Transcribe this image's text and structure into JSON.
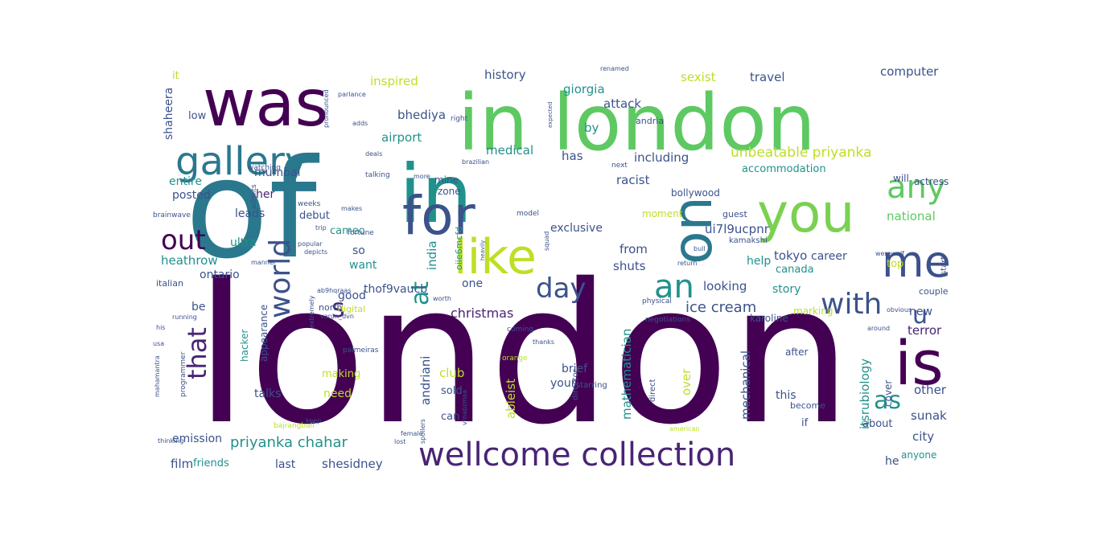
{
  "wordcloud": {
    "colormap": [
      "#440154",
      "#482878",
      "#3e4989",
      "#31688e",
      "#26828e",
      "#1f9e89",
      "#35b779",
      "#6ece58",
      "#b5de2b",
      "#fde725"
    ],
    "words": [
      {
        "text": "london",
        "color": "#440154"
      },
      {
        "text": "of",
        "color": "#2a788e"
      },
      {
        "text": "in london",
        "color": "#5ec962"
      },
      {
        "text": "was",
        "color": "#440154"
      },
      {
        "text": "in",
        "color": "#21918c"
      },
      {
        "text": "for",
        "color": "#3b528b"
      },
      {
        "text": "you",
        "color": "#7ad151"
      },
      {
        "text": "on",
        "color": "#2a788e"
      },
      {
        "text": "is",
        "color": "#440154"
      },
      {
        "text": "like",
        "color": "#bddf26"
      },
      {
        "text": "me",
        "color": "#3b528b"
      },
      {
        "text": "gallery",
        "color": "#2a788e"
      },
      {
        "text": "wellcome collection",
        "color": "#482475"
      },
      {
        "text": "any",
        "color": "#5ec962"
      },
      {
        "text": "an",
        "color": "#21918c"
      },
      {
        "text": "with",
        "color": "#3b528b"
      },
      {
        "text": "out",
        "color": "#440154"
      },
      {
        "text": "day",
        "color": "#3b528b"
      },
      {
        "text": "world",
        "color": "#3b528b"
      },
      {
        "text": "that",
        "color": "#482475"
      },
      {
        "text": "at",
        "color": "#21918c"
      },
      {
        "text": "s",
        "color": "#482475"
      },
      {
        "text": "as",
        "color": "#21918c"
      },
      {
        "text": "u",
        "color": "#3b528b"
      },
      {
        "text": "priyanka chahar",
        "color": "#21918c"
      },
      {
        "text": "unbeatable priyanka",
        "color": "#bddf26"
      },
      {
        "text": "ice cream",
        "color": "#3b528b"
      },
      {
        "text": "christmas",
        "color": "#482475"
      },
      {
        "text": "inspired",
        "color": "#bddf26"
      },
      {
        "text": "history",
        "color": "#3b528b"
      },
      {
        "text": "sexist",
        "color": "#bddf26"
      },
      {
        "text": "travel",
        "color": "#3b528b"
      },
      {
        "text": "computer",
        "color": "#3b528b"
      },
      {
        "text": "giorgia",
        "color": "#21918c"
      },
      {
        "text": "bhediya",
        "color": "#3b528b"
      },
      {
        "text": "attack",
        "color": "#3b528b"
      },
      {
        "text": "airport",
        "color": "#21918c"
      },
      {
        "text": "medical",
        "color": "#21918c"
      },
      {
        "text": "has",
        "color": "#3b528b"
      },
      {
        "text": "by",
        "color": "#21918c"
      },
      {
        "text": "including",
        "color": "#3b528b"
      },
      {
        "text": "racist",
        "color": "#3b528b"
      },
      {
        "text": "accommodation",
        "color": "#21918c"
      },
      {
        "text": "mumbai",
        "color": "#3b528b"
      },
      {
        "text": "her",
        "color": "#482475"
      },
      {
        "text": "posted",
        "color": "#3b528b"
      },
      {
        "text": "ui7l9ucpnr",
        "color": "#3b528b"
      },
      {
        "text": "national",
        "color": "#5ec962"
      },
      {
        "text": "exclusive",
        "color": "#3b528b"
      },
      {
        "text": "heathrow",
        "color": "#21918c"
      },
      {
        "text": "tokyo",
        "color": "#3b528b"
      },
      {
        "text": "career",
        "color": "#3b528b"
      },
      {
        "text": "help",
        "color": "#21918c"
      },
      {
        "text": "shuts",
        "color": "#3b528b"
      },
      {
        "text": "from",
        "color": "#3b528b"
      },
      {
        "text": "india",
        "color": "#21918c"
      },
      {
        "text": "looking",
        "color": "#3b528b"
      },
      {
        "text": "story",
        "color": "#21918c"
      },
      {
        "text": "mathematician",
        "color": "#21918c"
      },
      {
        "text": "mechanical",
        "color": "#3b528b"
      },
      {
        "text": "itsrubiology",
        "color": "#21918c"
      },
      {
        "text": "terror",
        "color": "#482475"
      },
      {
        "text": "andriani",
        "color": "#3b528b"
      },
      {
        "text": "ableist",
        "color": "#bddf26"
      },
      {
        "text": "club",
        "color": "#bddf26"
      },
      {
        "text": "over",
        "color": "#bddf26"
      },
      {
        "text": "sunak",
        "color": "#3b528b"
      },
      {
        "text": "other",
        "color": "#3b528b"
      },
      {
        "text": "city",
        "color": "#3b528b"
      },
      {
        "text": "shesidney",
        "color": "#3b528b"
      },
      {
        "text": "film",
        "color": "#3b528b"
      },
      {
        "text": "friends",
        "color": "#21918c"
      },
      {
        "text": "last",
        "color": "#3b528b"
      },
      {
        "text": "he",
        "color": "#3b528b"
      },
      {
        "text": "anyone",
        "color": "#21918c"
      },
      {
        "text": "emission",
        "color": "#3b528b"
      },
      {
        "text": "talks",
        "color": "#3b528b"
      },
      {
        "text": "need",
        "color": "#bddf26"
      },
      {
        "text": "shaheera",
        "color": "#3b528b"
      },
      {
        "text": "it",
        "color": "#bddf26"
      },
      {
        "text": "low",
        "color": "#3b528b"
      },
      {
        "text": "entire",
        "color": "#21918c"
      },
      {
        "text": "leads",
        "color": "#3b528b"
      },
      {
        "text": "ultra",
        "color": "#21918c"
      },
      {
        "text": "ontario",
        "color": "#3b528b"
      },
      {
        "text": "be",
        "color": "#3b528b"
      },
      {
        "text": "good",
        "color": "#3b528b"
      },
      {
        "text": "one",
        "color": "#3b528b"
      },
      {
        "text": "want",
        "color": "#21918c"
      },
      {
        "text": "so",
        "color": "#3b528b"
      },
      {
        "text": "thof9vaucb",
        "color": "#3b528b"
      },
      {
        "text": "debut",
        "color": "#3b528b"
      },
      {
        "text": "cameo",
        "color": "#21918c"
      },
      {
        "text": "your",
        "color": "#3b528b"
      },
      {
        "text": "brief",
        "color": "#3b528b"
      },
      {
        "text": "sold",
        "color": "#3b528b"
      },
      {
        "text": "can",
        "color": "#3b528b"
      },
      {
        "text": "this",
        "color": "#3b528b"
      },
      {
        "text": "new",
        "color": "#3b528b"
      },
      {
        "text": "couple",
        "color": "#3b528b"
      },
      {
        "text": "top",
        "color": "#bddf26"
      },
      {
        "text": "canada",
        "color": "#21918c"
      },
      {
        "text": "making",
        "color": "#bddf26"
      },
      {
        "text": "cover",
        "color": "#3b528b"
      },
      {
        "text": "after",
        "color": "#3b528b"
      },
      {
        "text": "about",
        "color": "#3b528b"
      },
      {
        "text": "if",
        "color": "#3b528b"
      },
      {
        "text": "actress",
        "color": "#3b528b"
      },
      {
        "text": "will",
        "color": "#3b528b"
      },
      {
        "text": "bollywood",
        "color": "#3b528b"
      },
      {
        "text": "zone",
        "color": "#3b528b"
      },
      {
        "text": "mine",
        "color": "#3b528b"
      },
      {
        "text": "moment",
        "color": "#bddf26"
      },
      {
        "text": "guest",
        "color": "#3b528b"
      },
      {
        "text": "marking",
        "color": "#bddf26"
      },
      {
        "text": "karoline",
        "color": "#3b528b"
      },
      {
        "text": "hacker",
        "color": "#21918c"
      },
      {
        "text": "appearance",
        "color": "#3b528b"
      },
      {
        "text": "digital",
        "color": "#bddf26"
      },
      {
        "text": "north",
        "color": "#3b528b"
      },
      {
        "text": "italian",
        "color": "#3b528b"
      },
      {
        "text": "andria",
        "color": "#3b528b"
      },
      {
        "text": "oiie6mcfd",
        "color": "#21918c"
      },
      {
        "text": "direct",
        "color": "#3b528b"
      },
      {
        "text": "become",
        "color": "#3b528b"
      },
      {
        "text": "starring",
        "color": "#3b528b"
      },
      {
        "text": "director",
        "color": "#3b528b"
      },
      {
        "text": "kamakshi",
        "color": "#3b528b"
      },
      {
        "text": "renamed",
        "color": "#3b528b"
      },
      {
        "text": "parlance",
        "color": "#3b528b"
      },
      {
        "text": "pronounced",
        "color": "#3b528b"
      },
      {
        "text": "expected",
        "color": "#3b528b"
      },
      {
        "text": "model",
        "color": "#3b528b"
      },
      {
        "text": "fortune",
        "color": "#3b528b"
      },
      {
        "text": "brazilian",
        "color": "#3b528b"
      },
      {
        "text": "popular",
        "color": "#3b528b"
      },
      {
        "text": "physical",
        "color": "#3b528b"
      },
      {
        "text": "negotiations",
        "color": "#3b528b"
      },
      {
        "text": "obvious",
        "color": "#3b528b"
      },
      {
        "text": "around",
        "color": "#3b528b"
      },
      {
        "text": "coming",
        "color": "#3b528b"
      },
      {
        "text": "orange",
        "color": "#bddf26"
      },
      {
        "text": "palmeiras",
        "color": "#3b528b"
      },
      {
        "text": "thanks",
        "color": "#3b528b"
      },
      {
        "text": "programmer",
        "color": "#3b528b"
      },
      {
        "text": "running",
        "color": "#3b528b"
      },
      {
        "text": "thinking",
        "color": "#3b528b"
      },
      {
        "text": "female",
        "color": "#3b528b"
      },
      {
        "text": "american",
        "color": "#bddf26"
      },
      {
        "text": "weeks",
        "color": "#3b528b"
      },
      {
        "text": "admits",
        "color": "#3b528b"
      },
      {
        "text": "watching",
        "color": "#3b528b"
      },
      {
        "text": "talking",
        "color": "#3b528b"
      },
      {
        "text": "makes",
        "color": "#3b528b"
      },
      {
        "text": "trip",
        "color": "#3b528b"
      },
      {
        "text": "depicts",
        "color": "#3b528b"
      },
      {
        "text": "return",
        "color": "#3b528b"
      },
      {
        "text": "bull",
        "color": "#3b528b"
      },
      {
        "text": "start",
        "color": "#3b528b"
      },
      {
        "text": "next",
        "color": "#3b528b"
      },
      {
        "text": "right",
        "color": "#3b528b"
      },
      {
        "text": "adds",
        "color": "#3b528b"
      },
      {
        "text": "deals",
        "color": "#3b528b"
      },
      {
        "text": "extremely",
        "color": "#3b528b"
      },
      {
        "text": "usa",
        "color": "#3b528b"
      },
      {
        "text": "werewolf",
        "color": "#3b528b"
      },
      {
        "text": "worth",
        "color": "#3b528b"
      },
      {
        "text": "heavily",
        "color": "#3b528b"
      },
      {
        "text": "squad",
        "color": "#3b528b"
      },
      {
        "text": "more",
        "color": "#3b528b"
      },
      {
        "text": "bajrangbali",
        "color": "#bddf26"
      },
      {
        "text": "mahamantra",
        "color": "#3b528b"
      },
      {
        "text": "vrnabzmsa",
        "color": "#3b528b"
      },
      {
        "text": "spoilers",
        "color": "#3b528b"
      },
      {
        "text": "lost",
        "color": "#3b528b"
      },
      {
        "text": "keep",
        "color": "#3b528b"
      },
      {
        "text": "varun_dvn",
        "color": "#3b528b"
      },
      {
        "text": "ab9hqraas",
        "color": "#3b528b"
      },
      {
        "text": "manner",
        "color": "#3b528b"
      },
      {
        "text": "his",
        "color": "#3b528b"
      },
      {
        "text": "brainwave",
        "color": "#3b528b"
      }
    ]
  }
}
